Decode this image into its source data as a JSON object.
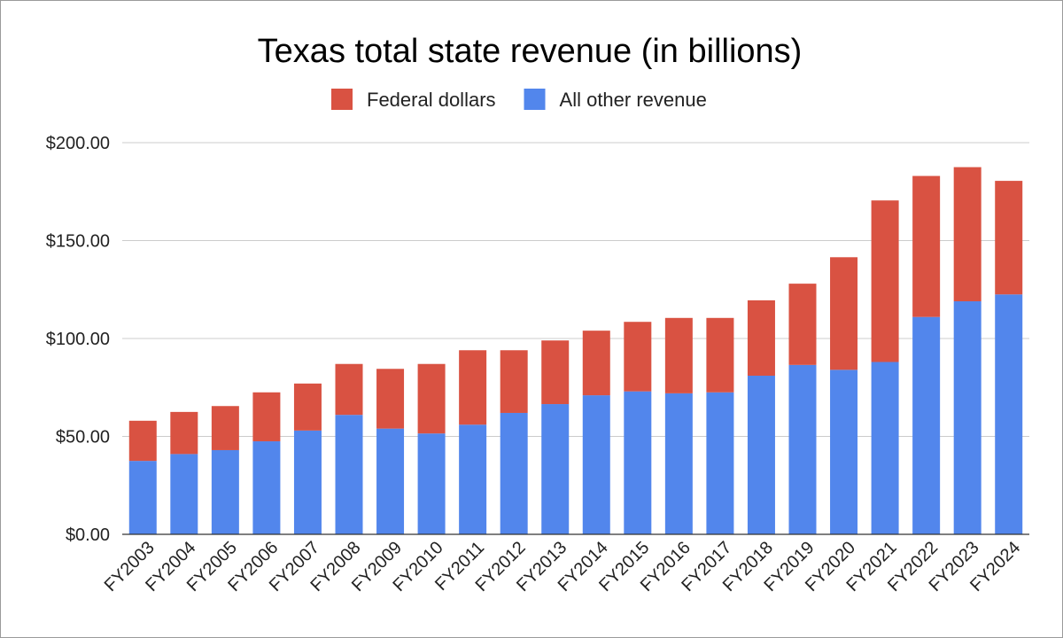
{
  "chart_data": {
    "type": "bar",
    "stacked": true,
    "title": "Texas total state revenue (in billions)",
    "xlabel": "",
    "ylabel": "",
    "ylim": [
      0,
      200
    ],
    "yticks": [
      0,
      50,
      100,
      150,
      200
    ],
    "ytick_labels": [
      "$0.00",
      "$50.00",
      "$100.00",
      "$150.00",
      "$200.00"
    ],
    "grid": true,
    "legend_position": "top",
    "categories": [
      "FY2003",
      "FY2004",
      "FY2005",
      "FY2006",
      "FY2007",
      "FY2008",
      "FY2009",
      "FY2010",
      "FY2011",
      "FY2012",
      "FY2013",
      "FY2014",
      "FY2015",
      "FY2016",
      "FY2017",
      "FY2018",
      "FY2019",
      "FY2020",
      "FY2021",
      "FY2022",
      "FY2023",
      "FY2024"
    ],
    "series": [
      {
        "name": "All other revenue",
        "color": "#5286EC",
        "values": [
          37.5,
          41,
          43,
          47.5,
          53,
          61,
          54,
          51.5,
          56,
          62,
          66.5,
          71,
          73,
          72,
          72.5,
          81,
          86.5,
          84,
          88,
          111,
          119,
          122.5
        ]
      },
      {
        "name": "Federal dollars",
        "color": "#D95242",
        "values": [
          20.5,
          21.5,
          22.5,
          25,
          24,
          26,
          30.5,
          35.5,
          38,
          32,
          32.5,
          33,
          35.5,
          38.5,
          38,
          38.5,
          41.5,
          57.5,
          82.5,
          72,
          68.5,
          58
        ]
      }
    ],
    "legend_order": [
      "Federal dollars",
      "All other revenue"
    ]
  }
}
